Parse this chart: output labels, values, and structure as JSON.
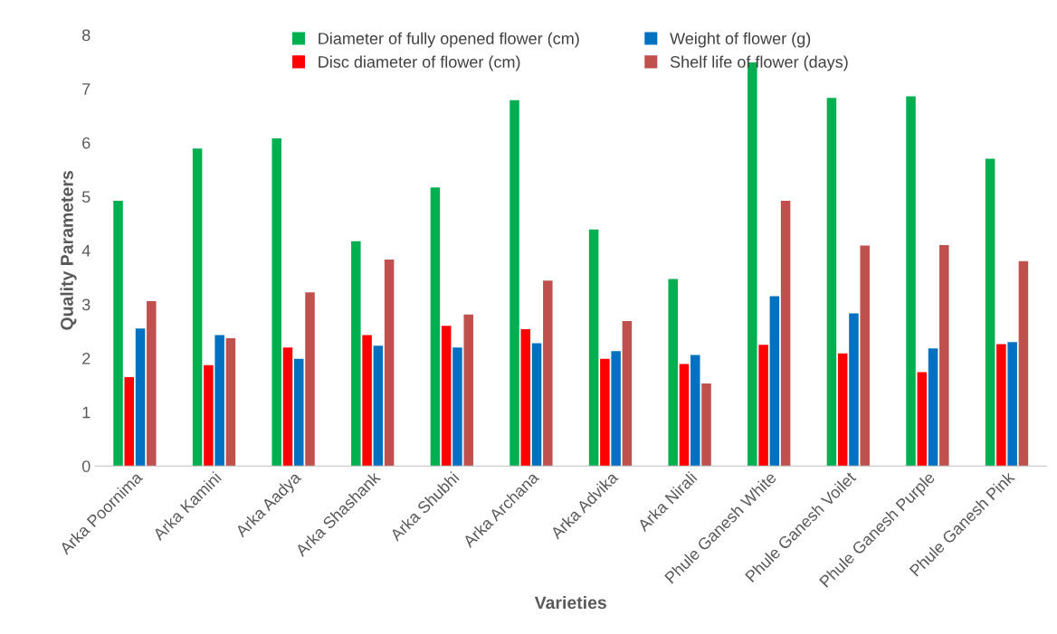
{
  "chart_data": {
    "type": "bar",
    "xlabel": "Varieties",
    "ylabel": "Quality Parameters",
    "categories": [
      "Arka Poornima",
      "Arka Kamini",
      "Arka Aadya",
      "Arka Shashank",
      "Arka Shubhi",
      "Arka Archana",
      "Arka Advika",
      "Arka Nirali",
      "Phule Ganesh White",
      "Phule Ganesh Voilet",
      "Phule Ganesh Purple",
      "Phule Ganesh Pink"
    ],
    "series": [
      {
        "name": "Diameter of fully opened flower (cm)",
        "color": "#00b050",
        "values": [
          4.92,
          5.89,
          6.08,
          4.17,
          5.17,
          6.79,
          4.39,
          3.47,
          7.49,
          6.83,
          6.86,
          5.7
        ]
      },
      {
        "name": "Disc diameter of flower (cm)",
        "color": "#ff0000",
        "values": [
          1.65,
          1.87,
          2.2,
          2.43,
          2.6,
          2.54,
          1.99,
          1.89,
          2.25,
          2.09,
          1.74,
          2.26
        ]
      },
      {
        "name": "Weight of flower (g)",
        "color": "#0070c0",
        "values": [
          2.55,
          2.43,
          1.99,
          2.23,
          2.2,
          2.28,
          2.13,
          2.06,
          3.15,
          2.83,
          2.18,
          2.3
        ]
      },
      {
        "name": "Shelf life of flower (days)",
        "color": "#c0504d",
        "values": [
          3.06,
          2.37,
          3.22,
          3.83,
          2.81,
          3.44,
          2.69,
          1.53,
          4.92,
          4.09,
          4.1,
          3.8
        ]
      }
    ],
    "ylim": [
      0,
      8
    ],
    "yticks": [
      0,
      1,
      2,
      3,
      4,
      5,
      6,
      7,
      8
    ],
    "grid": false,
    "legend": "top"
  }
}
